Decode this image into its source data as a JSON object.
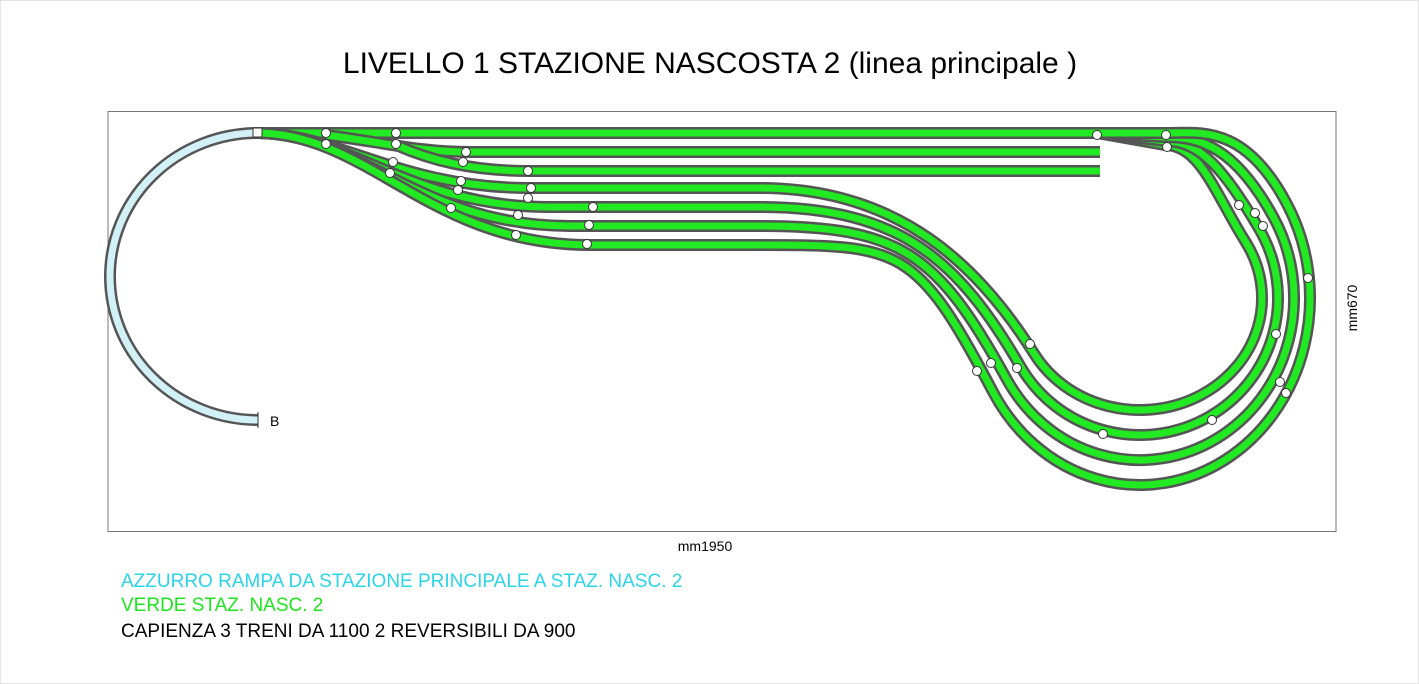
{
  "title": "LIVELLO 1 STAZIONE NASCOSTA 2 (linea principale )",
  "layout": {
    "width_label": "mm1950",
    "height_label": "mm670",
    "endpoint_label": "B"
  },
  "legend": [
    {
      "text": "AZZURRO RAMPA DA STAZIONE PRINCIPALE A STAZ. NASC. 2"
    },
    {
      "text": "VERDE STAZ. NASC. 2"
    },
    {
      "text": "CAPIENZA 3 TRENI DA 1100  2 REVERSIBILI DA 900"
    }
  ]
}
